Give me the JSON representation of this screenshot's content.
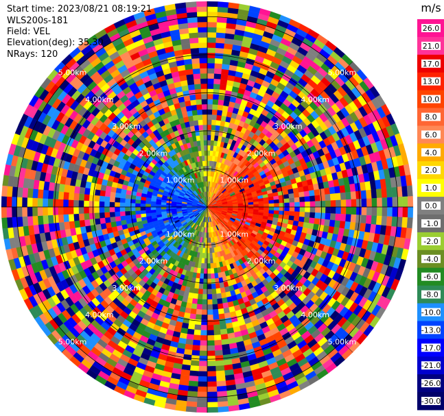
{
  "header": {
    "start_time": "Start time: 2023/08/21 08:19:21",
    "instrument": "WLS200s-181",
    "field": "Field: VEL",
    "elevation": "Elevation(deg): 35.30",
    "nrays": "NRays: 120"
  },
  "colorbar": {
    "unit": "m/s",
    "labels": [
      "26.0",
      "21.0",
      "17.0",
      "13.0",
      "10.0",
      "8.0",
      "6.0",
      "4.0",
      "2.0",
      "1.0",
      "0.0",
      "-1.0",
      "-2.0",
      "-4.0",
      "-6.0",
      "-8.0",
      "-10.0",
      "-13.0",
      "-17.0",
      "-21.0",
      "-26.0",
      "-30.0"
    ],
    "colors": [
      "#ff1493",
      "#ff3399",
      "#ee0000",
      "#ff2200",
      "#ff4400",
      "#ff6633",
      "#ff8855",
      "#ffaa00",
      "#ffd700",
      "#ffff00",
      "#808080",
      "#6e6e6e",
      "#9acd32",
      "#6b8e23",
      "#228b22",
      "#2e8b57",
      "#1e90ff",
      "#0044ff",
      "#0000ff",
      "#0000cd",
      "#000080",
      "#00006a"
    ]
  },
  "chart_data": {
    "type": "ppi",
    "field": "VEL",
    "units": "m/s",
    "nrays": 120,
    "elevation_deg": 35.3,
    "range_rings_km": [
      1.0,
      2.0,
      3.0,
      4.0,
      5.0
    ],
    "ring_labels": [
      "1.00km",
      "2.00km",
      "3.00km",
      "4.00km",
      "5.00km"
    ],
    "value_range": [
      -30.0,
      26.0
    ],
    "grid": true,
    "legend": "right"
  }
}
